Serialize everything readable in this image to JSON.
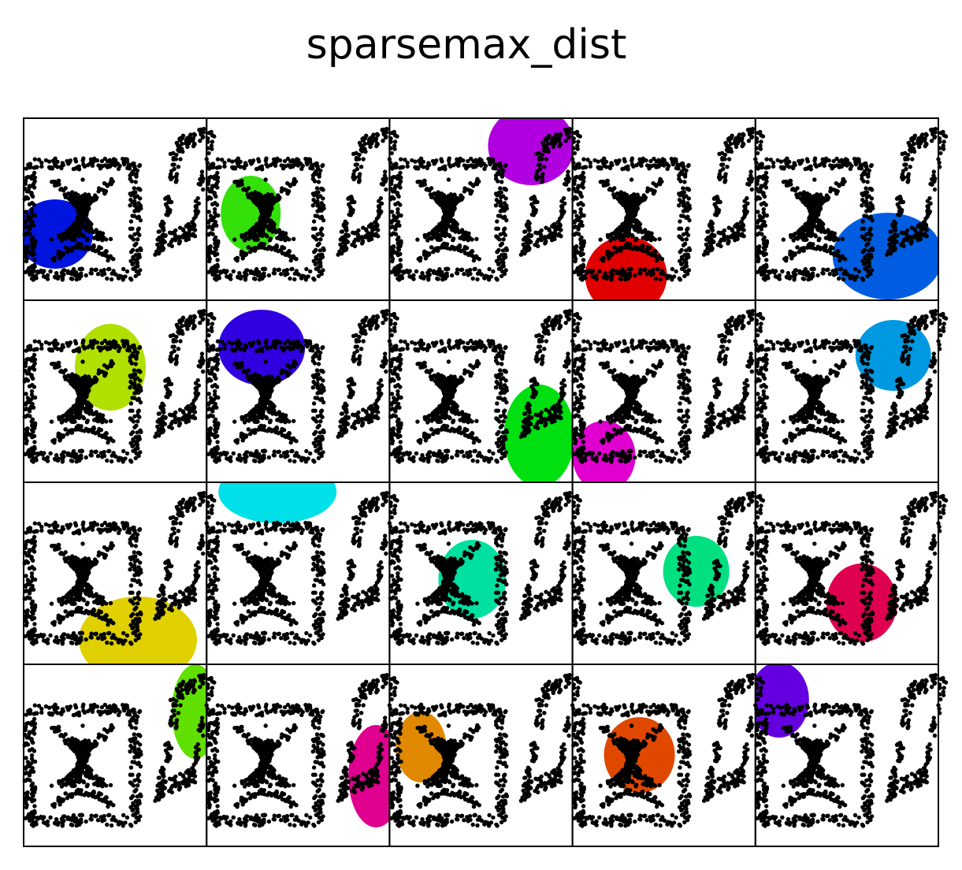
{
  "chart_data": {
    "type": "scatter",
    "title": "sparsemax_dist",
    "colors": [
      "#0014e0",
      "#33e00a",
      "#b000e0",
      "#e00000",
      "#005ce0",
      "#b0e000",
      "#3000e0",
      "#00e010",
      "#e000d0",
      "#0098e0",
      "#e0d000",
      "#00e0e8",
      "#00e0a0",
      "#00e080",
      "#e00050",
      "#60e000",
      "#e00090",
      "#e08800",
      "#e04800",
      "#6400e0"
    ]
  }
}
